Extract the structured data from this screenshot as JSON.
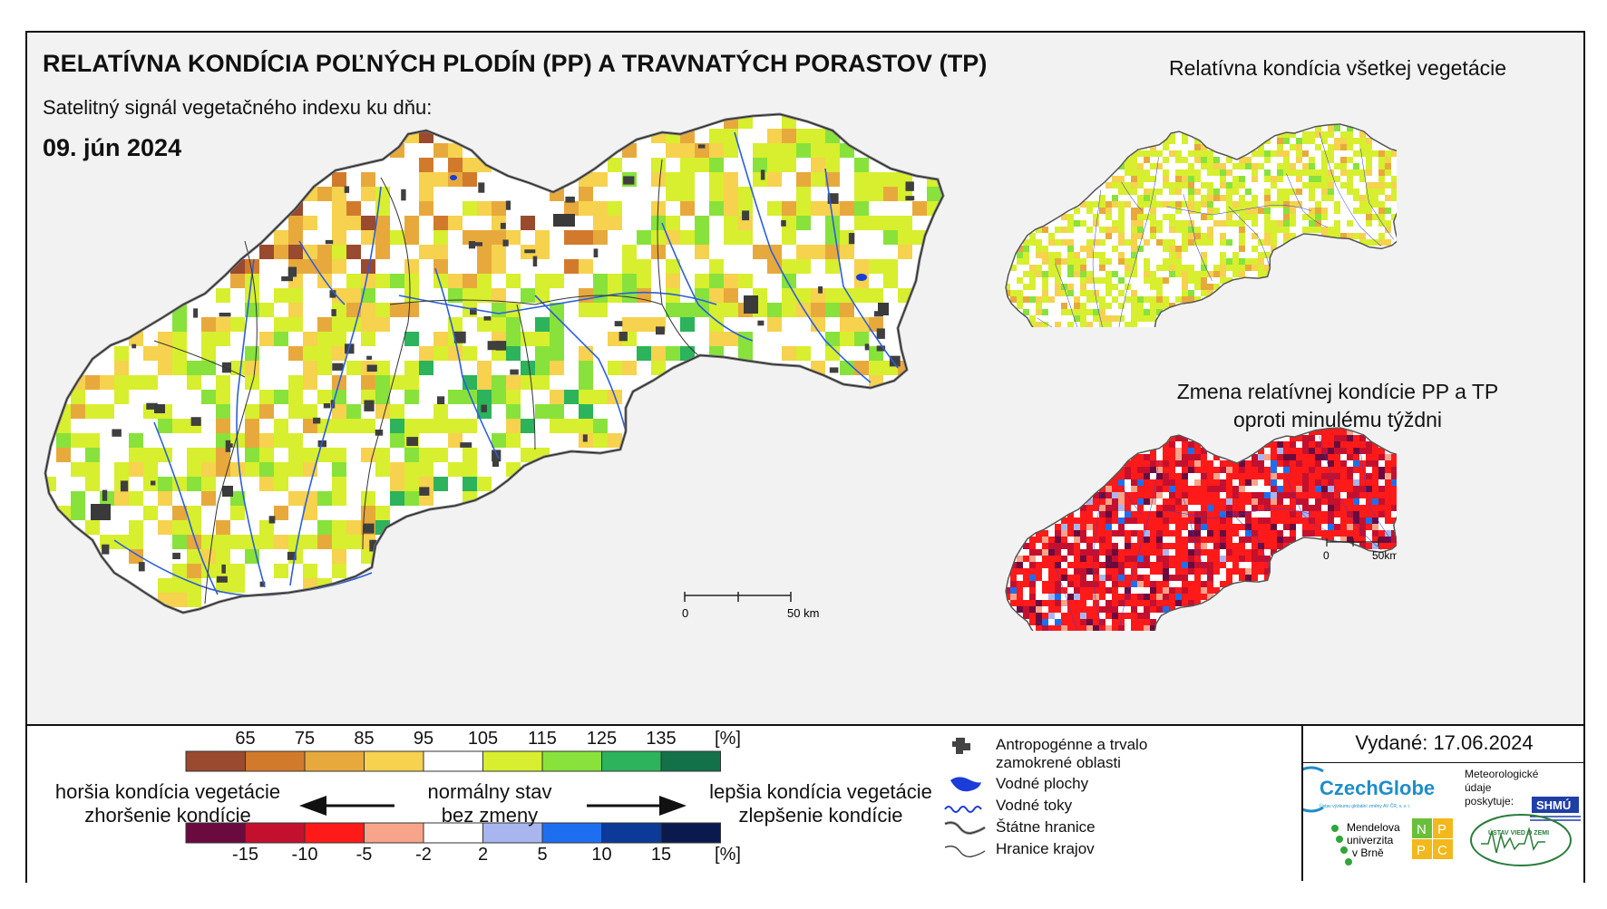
{
  "header": {
    "title": "RELATÍVNA KONDÍCIA POĽNÝCH PLODÍN (PP) A TRAVNATÝCH PORASTOV (TP)",
    "subtitle": "Satelitný signál vegetačného indexu ku dňu:",
    "date": "09. jún 2024"
  },
  "insets": {
    "all_vegetation_title": "Relatívna kondícia všetkej vegetácie",
    "change_title_line1": "Zmena relatívnej kondície PP a TP",
    "change_title_line2": "oproti minulému týždni"
  },
  "scalebars": {
    "main": {
      "start": "0",
      "end": "50 km"
    },
    "inset": {
      "start": "0",
      "end": "50km"
    }
  },
  "legend_condition": {
    "labels": [
      "65",
      "75",
      "85",
      "95",
      "105",
      "115",
      "125",
      "135"
    ],
    "unit": "[%]",
    "colors": [
      "#9a4a2e",
      "#d27a2c",
      "#e8a93c",
      "#f6d24e",
      "#ffffff",
      "#d7ef2e",
      "#88e23b",
      "#2cb35b",
      "#13714a"
    ]
  },
  "legend_change": {
    "labels": [
      "-15",
      "-10",
      "-5",
      "-2",
      "2",
      "5",
      "10",
      "15"
    ],
    "unit": "[%]",
    "colors": [
      "#6b0a3f",
      "#c4102f",
      "#ff1a1a",
      "#f7a48b",
      "#ffffff",
      "#a8b6f0",
      "#1e6ff0",
      "#0b3a98",
      "#0b1a4e"
    ]
  },
  "arrows": {
    "worse_line1": "horšia kondícia vegetácie",
    "worse_line2": "zhoršenie kondície",
    "normal_line1": "normálny stav",
    "normal_line2": "bez zmeny",
    "better_line1": "lepšia kondícia vegetácie",
    "better_line2": "zlepšenie kondície"
  },
  "map_key": [
    {
      "icon": "urban-area-icon",
      "label_line1": "Antropogénne a trvalo",
      "label_line2": "zamokrené oblasti"
    },
    {
      "icon": "water-body-icon",
      "label_line1": "Vodné plochy",
      "label_line2": ""
    },
    {
      "icon": "river-icon",
      "label_line1": "Vodné toky",
      "label_line2": ""
    },
    {
      "icon": "state-border-icon",
      "label_line1": "Štátne hranice",
      "label_line2": ""
    },
    {
      "icon": "region-border-icon",
      "label_line1": "Hranice krajov",
      "label_line2": ""
    }
  ],
  "issue": {
    "issued": "Vydané: 17.06.2024",
    "meteo_line1": "Meteorologické",
    "meteo_line2": "údaje",
    "meteo_line3": "poskytuje:",
    "shmu": "SHMÚ",
    "czechglobe": "CzechGlobe",
    "czechglobe_sub": "Ústav výzkumu globální změny AV ČR, v. v. i.",
    "mendel_line1": "Mendelova",
    "mendel_line2": "univerzita",
    "mendel_line3": "v Brně",
    "nppc": [
      "N",
      "P",
      "P",
      "C"
    ],
    "uvz": "ÚSTAV VIED O ZEMI"
  }
}
